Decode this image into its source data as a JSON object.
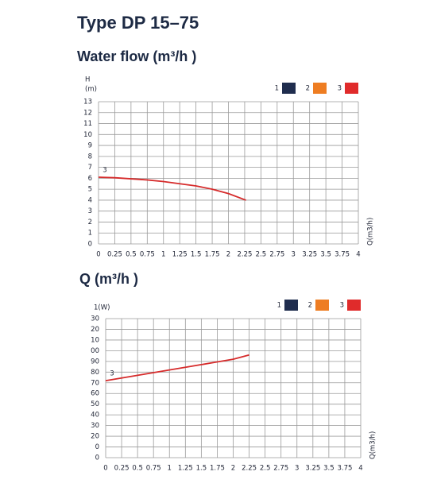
{
  "page_title": "Type DP 15–75",
  "chart_data": [
    {
      "type": "line",
      "title": "Water flow (m³/h )",
      "ylabel": "H",
      "yunit": "(m)",
      "xlabel": "Q(m3/h)",
      "xlim": [
        0,
        4
      ],
      "ylim": [
        0,
        13
      ],
      "grid": true,
      "xticks": [
        0,
        0.25,
        0.5,
        0.75,
        1,
        1.25,
        1.5,
        1.75,
        2,
        2.25,
        2.5,
        2.75,
        3,
        3.25,
        3.5,
        3.75,
        4
      ],
      "yticks": [
        0,
        1,
        2,
        3,
        4,
        5,
        6,
        7,
        8,
        9,
        10,
        11,
        12,
        13
      ],
      "legend": [
        {
          "name": "1",
          "color": "#1f2d4e"
        },
        {
          "name": "2",
          "color": "#ee7d22"
        },
        {
          "name": "3",
          "color": "#e02b2b"
        }
      ],
      "series": [
        {
          "name": "3",
          "color": "#d62b2b",
          "x": [
            0,
            0.25,
            0.5,
            0.75,
            1,
            1.25,
            1.5,
            1.75,
            2,
            2.27
          ],
          "values": [
            6.1,
            6.05,
            5.95,
            5.85,
            5.7,
            5.5,
            5.3,
            5.0,
            4.6,
            4.0
          ]
        }
      ]
    },
    {
      "type": "line",
      "title": "Q (m³/h )",
      "ylabel": "1(W)",
      "xlabel": "Q(m3/h)",
      "xlim": [
        0,
        4
      ],
      "ylim": [
        0,
        130
      ],
      "grid": true,
      "xticks": [
        0,
        0.25,
        0.5,
        0.75,
        1,
        1.25,
        1.5,
        1.75,
        2,
        2.25,
        2.5,
        2.75,
        3,
        3.25,
        3.5,
        3.75,
        4
      ],
      "yticks": [
        0,
        {
          "value": 10,
          "label": "0"
        },
        20,
        30,
        40,
        50,
        60,
        70,
        80,
        90,
        {
          "value": 100,
          "label": "00"
        },
        {
          "value": 110,
          "label": "10"
        },
        {
          "value": 120,
          "label": "20"
        },
        {
          "value": 130,
          "label": "30"
        }
      ],
      "legend": [
        {
          "name": "1",
          "color": "#1f2d4e"
        },
        {
          "name": "2",
          "color": "#ee7d22"
        },
        {
          "name": "3",
          "color": "#e02b2b"
        }
      ],
      "series": [
        {
          "name": "3",
          "color": "#d62b2b",
          "x": [
            0,
            0.25,
            0.5,
            0.75,
            1,
            1.25,
            1.5,
            1.75,
            2,
            2.25
          ],
          "values": [
            72,
            74.5,
            77,
            79.5,
            82,
            84.5,
            87,
            89.5,
            92,
            96
          ]
        }
      ]
    }
  ]
}
